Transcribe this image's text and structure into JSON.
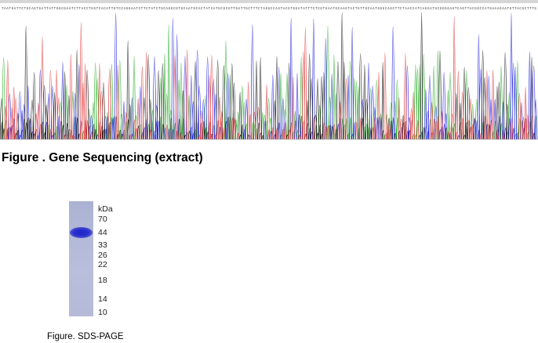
{
  "sequencing": {
    "caption": "Figure . Gene Sequencing (extract)",
    "colors": {
      "A": "#22aa22",
      "C": "#1f1fe0",
      "G": "#111111",
      "T": "#e03030"
    },
    "base_header_text": "TAATGATTCTGCAGTGATTATTGGCGAATCTTACCTGGTCACATTGTCCAGGAATCTTCTATCTGCAGGCGTGCAATGCACTATCATGCGCGTTGATTGCTTTCTAGGCCAGTACGTGGATATTTCTCGTGAATGCAAGTACTGTTGCAATGGGCAGCTTCTAACCATCAGGATGCGGGGAGTCAGTTACGGCCATGAAAGAATGTTACGCTTTG"
  },
  "sds_page": {
    "unit_label": "kDa",
    "markers": [
      "70",
      "44",
      "33",
      "26",
      "22",
      "18",
      "14",
      "10"
    ],
    "caption": "Figure. SDS-PAGE"
  }
}
